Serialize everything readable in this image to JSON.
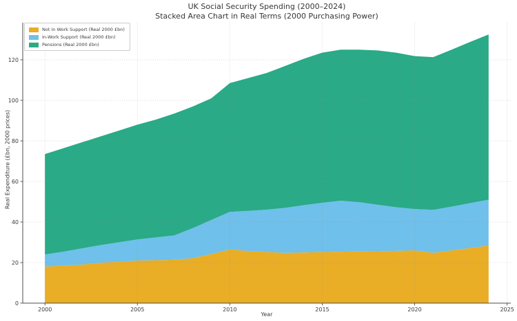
{
  "figure": {
    "background": "#ffffff",
    "text_color": "#3a3a3a",
    "spine_color": "#4d4d4d",
    "grid_color": "rgba(150,150,150,0.38)"
  },
  "chart_data": {
    "type": "area",
    "stacked": true,
    "title": "UK Social Security Spending (2000–2024)",
    "subtitle": "Stacked Area Chart in Real Terms (2000 Purchasing Power)",
    "xlabel": "Year",
    "ylabel": "Real Expenditure (£bn, 2000 prices)",
    "x": [
      2000,
      2001,
      2002,
      2003,
      2004,
      2005,
      2006,
      2007,
      2008,
      2009,
      2010,
      2011,
      2012,
      2013,
      2014,
      2015,
      2016,
      2017,
      2018,
      2019,
      2020,
      2021,
      2022,
      2023,
      2024
    ],
    "series": [
      {
        "name": "Not in Work Support (Real 2000 £bn)",
        "slug": "not-in-work-support",
        "color": "#E9AD26",
        "values": [
          18.0,
          18.5,
          19.0,
          19.9,
          20.4,
          21.0,
          21.2,
          21.4,
          22.2,
          24.2,
          26.5,
          25.7,
          25.2,
          24.8,
          25.0,
          25.2,
          25.4,
          25.5,
          25.6,
          25.8,
          26.0,
          24.8,
          26.0,
          27.2,
          28.4
        ]
      },
      {
        "name": "In-Work Support (Real 2000 £bn)",
        "slug": "in-work-support",
        "color": "#6FC0EB",
        "values": [
          6.0,
          6.9,
          8.0,
          8.7,
          9.6,
          10.4,
          11.2,
          12.0,
          14.8,
          16.8,
          18.5,
          19.8,
          20.9,
          22.2,
          23.3,
          24.3,
          25.1,
          24.3,
          22.9,
          21.5,
          20.4,
          21.2,
          21.6,
          22.1,
          22.6
        ]
      },
      {
        "name": "Pensions (Real 2000 £bn)",
        "slug": "pensions",
        "color": "#2AAA87",
        "values": [
          49.5,
          51.0,
          52.3,
          53.6,
          55.1,
          56.6,
          58.1,
          60.1,
          60.0,
          60.0,
          63.5,
          65.5,
          67.4,
          70.0,
          72.2,
          74.0,
          74.5,
          75.2,
          76.1,
          76.2,
          75.4,
          75.3,
          77.4,
          79.5,
          81.5
        ]
      }
    ],
    "totals": [
      73.5,
      76.4,
      79.3,
      82.2,
      85.1,
      88.0,
      90.5,
      93.5,
      97.0,
      101.0,
      108.5,
      111.0,
      113.5,
      117.0,
      120.5,
      123.5,
      125.0,
      125.0,
      124.6,
      123.5,
      121.8,
      121.3,
      125.0,
      128.8,
      132.5
    ],
    "xlim": [
      1998.8,
      2025.2
    ],
    "ylim": [
      0,
      138.3
    ],
    "xticks": [
      2000,
      2005,
      2010,
      2015,
      2020,
      2025
    ],
    "yticks": [
      0,
      20,
      40,
      60,
      80,
      100,
      120
    ],
    "grid": true,
    "grid_style": "dotted",
    "legend_position": "upper left"
  }
}
